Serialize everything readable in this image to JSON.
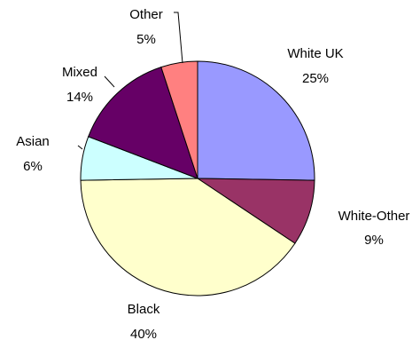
{
  "chart_data": {
    "type": "pie",
    "slices": [
      {
        "label": "White UK",
        "value": 25,
        "pct_label": "25%",
        "color": "#9999ff"
      },
      {
        "label": "White-Other",
        "value": 9,
        "pct_label": "9%",
        "color": "#993366"
      },
      {
        "label": "Black",
        "value": 40,
        "pct_label": "40%",
        "color": "#ffffcc"
      },
      {
        "label": "Asian",
        "value": 6,
        "pct_label": "6%",
        "color": "#ccffff"
      },
      {
        "label": "Mixed",
        "value": 14,
        "pct_label": "14%",
        "color": "#660066"
      },
      {
        "label": "Other",
        "value": 5,
        "pct_label": "5%",
        "color": "#ff8080"
      }
    ]
  }
}
